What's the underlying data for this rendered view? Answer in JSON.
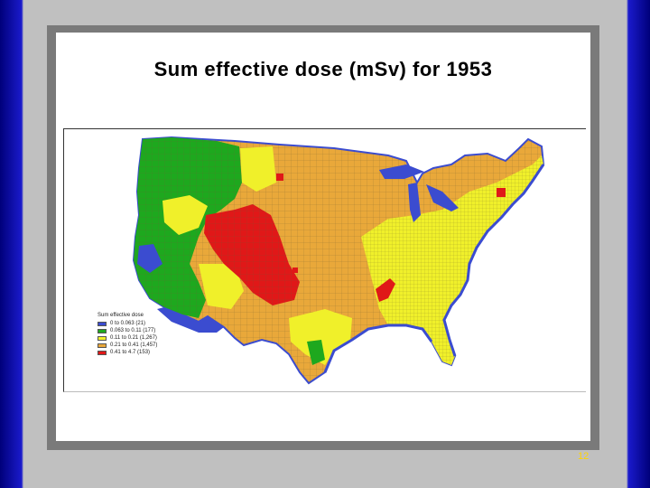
{
  "slide": {
    "title": "Sum effective dose (mSv) for 1953",
    "page_number": "12"
  },
  "legend": {
    "title": "Sum effective dose",
    "items": [
      {
        "label": "0 to 0.063 (21)",
        "color": "#3b4cd0"
      },
      {
        "label": "0.063 to 0.11 (177)",
        "color": "#1ea81e"
      },
      {
        "label": "0.11 to 0.21 (1,267)",
        "color": "#f0f02a"
      },
      {
        "label": "0.21 to 0.41 (1,457)",
        "color": "#e9a83a"
      },
      {
        "label": "0.41 to 4.7 (153)",
        "color": "#e01818"
      }
    ]
  },
  "colors": {
    "water": "#3b4cd0",
    "low": "#1ea81e",
    "mid": "#f0f02a",
    "high": "#e9a83a",
    "max": "#e01818",
    "frame": "#7a7a7a",
    "slide_edge": "#1a1acc",
    "page_number": "#ffd400"
  }
}
